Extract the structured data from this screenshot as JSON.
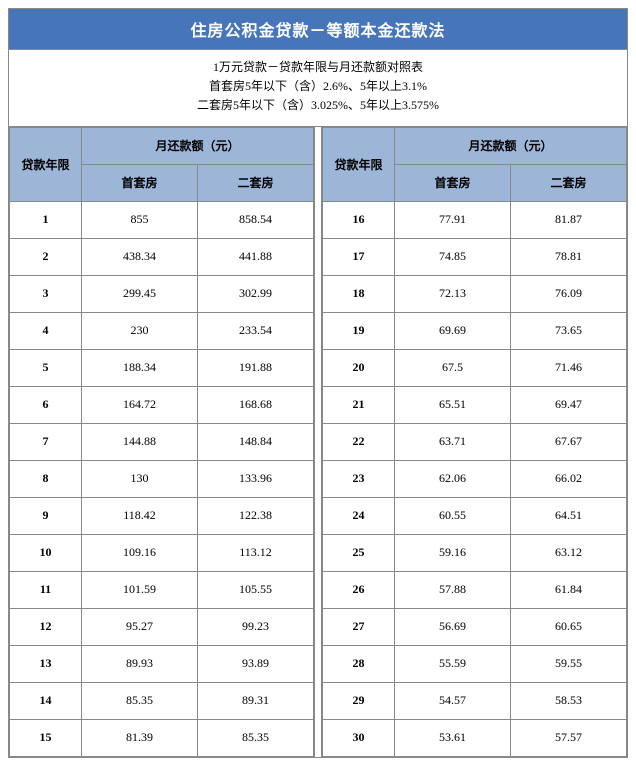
{
  "title": "住房公积金贷款－等额本金还款法",
  "subtitle_lines": [
    "1万元贷款－贷款年限与月还款额对照表",
    "首套房5年以下（含）2.6%、5年以上3.1%",
    "二套房5年以下（含）3.025%、5年以上3.575%"
  ],
  "headers": {
    "year": "贷款年限",
    "monthly": "月还款额（元）",
    "first": "首套房",
    "second": "二套房"
  },
  "left_rows": [
    {
      "y": "1",
      "a": "855",
      "b": "858.54"
    },
    {
      "y": "2",
      "a": "438.34",
      "b": "441.88"
    },
    {
      "y": "3",
      "a": "299.45",
      "b": "302.99"
    },
    {
      "y": "4",
      "a": "230",
      "b": "233.54"
    },
    {
      "y": "5",
      "a": "188.34",
      "b": "191.88"
    },
    {
      "y": "6",
      "a": "164.72",
      "b": "168.68"
    },
    {
      "y": "7",
      "a": "144.88",
      "b": "148.84"
    },
    {
      "y": "8",
      "a": "130",
      "b": "133.96"
    },
    {
      "y": "9",
      "a": "118.42",
      "b": "122.38"
    },
    {
      "y": "10",
      "a": "109.16",
      "b": "113.12"
    },
    {
      "y": "11",
      "a": "101.59",
      "b": "105.55"
    },
    {
      "y": "12",
      "a": "95.27",
      "b": "99.23"
    },
    {
      "y": "13",
      "a": "89.93",
      "b": "93.89"
    },
    {
      "y": "14",
      "a": "85.35",
      "b": "89.31"
    },
    {
      "y": "15",
      "a": "81.39",
      "b": "85.35"
    }
  ],
  "right_rows": [
    {
      "y": "16",
      "a": "77.91",
      "b": "81.87"
    },
    {
      "y": "17",
      "a": "74.85",
      "b": "78.81"
    },
    {
      "y": "18",
      "a": "72.13",
      "b": "76.09"
    },
    {
      "y": "19",
      "a": "69.69",
      "b": "73.65"
    },
    {
      "y": "20",
      "a": "67.5",
      "b": "71.46"
    },
    {
      "y": "21",
      "a": "65.51",
      "b": "69.47"
    },
    {
      "y": "22",
      "a": "63.71",
      "b": "67.67"
    },
    {
      "y": "23",
      "a": "62.06",
      "b": "66.02"
    },
    {
      "y": "24",
      "a": "60.55",
      "b": "64.51"
    },
    {
      "y": "25",
      "a": "59.16",
      "b": "63.12"
    },
    {
      "y": "26",
      "a": "57.88",
      "b": "61.84"
    },
    {
      "y": "27",
      "a": "56.69",
      "b": "60.65"
    },
    {
      "y": "28",
      "a": "55.59",
      "b": "59.55"
    },
    {
      "y": "29",
      "a": "54.57",
      "b": "58.53"
    },
    {
      "y": "30",
      "a": "53.61",
      "b": "57.57"
    }
  ],
  "colors": {
    "title_bg": "#4675b9",
    "title_fg": "#ffffff",
    "header_bg": "#9db5d7",
    "border": "#888888",
    "bg": "#ffffff"
  },
  "fontsize": {
    "title": 16,
    "body": 12
  }
}
